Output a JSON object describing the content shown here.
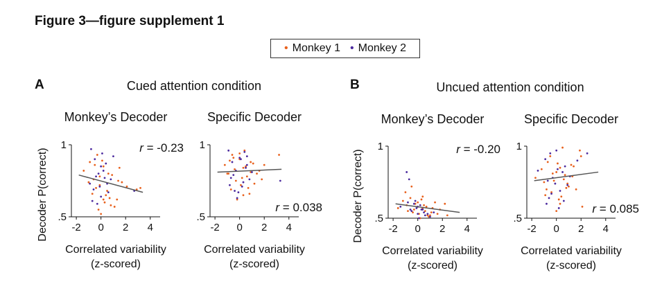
{
  "figure_title": "Figure 3—figure supplement 1",
  "legend": {
    "items": [
      {
        "label": "Monkey 1",
        "marker": "•",
        "color": "#e8601c"
      },
      {
        "label": "Monkey 2",
        "marker": "•",
        "color": "#4b2a9e"
      }
    ]
  },
  "panels": [
    {
      "letter": "A",
      "condition": "Cued attention condition"
    },
    {
      "letter": "B",
      "condition": "Uncued attention condition"
    }
  ],
  "colors": {
    "monkey1": "#e8601c",
    "monkey2": "#4b2a9e",
    "fit": "#555555",
    "axis": "#111111"
  },
  "chart_data": [
    {
      "type": "scatter",
      "panel": "A",
      "title": "Monkey’s Decoder",
      "xlabel": "Correlated variability",
      "xlabel2": "(z-scored)",
      "ylabel": "Decoder P(correct)",
      "xlim": [
        -2.4,
        4.8
      ],
      "ylim": [
        0.5,
        1.0
      ],
      "xticks": [
        -2,
        0,
        2,
        4
      ],
      "xtick_labels": [
        "-2",
        "0",
        "2",
        "4"
      ],
      "yticks": [
        0.5,
        1.0
      ],
      "ytick_labels": [
        ".5",
        "1"
      ],
      "annotation": "r = -0.23",
      "annotation_pos": "top-right",
      "fit": {
        "x": [
          -1.8,
          3.4
        ],
        "y": [
          0.79,
          0.67
        ]
      },
      "series": [
        {
          "name": "Monkey 1",
          "color": "#e8601c",
          "x": [
            -1.4,
            -0.9,
            -0.6,
            -0.3,
            -0.1,
            0.2,
            0.5,
            0.9,
            1.3,
            1.7,
            2.1,
            2.9,
            -0.7,
            -0.2,
            0.3,
            0.7,
            1.1,
            1.5,
            0.0,
            -0.4,
            0.1,
            0.6,
            -1.0,
            3.2,
            0.4,
            -0.5,
            0.8,
            1.4,
            -0.1,
            0.2
          ],
          "y": [
            0.82,
            0.88,
            0.76,
            0.93,
            0.72,
            0.85,
            0.68,
            0.79,
            0.62,
            0.74,
            0.71,
            0.69,
            0.66,
            0.55,
            0.6,
            0.63,
            0.57,
            0.84,
            0.52,
            0.7,
            0.89,
            0.8,
            0.74,
            0.7,
            0.65,
            0.86,
            0.58,
            0.75,
            0.78,
            0.62
          ]
        },
        {
          "name": "Monkey 2",
          "color": "#4b2a9e",
          "x": [
            -0.8,
            -0.5,
            -0.2,
            0.1,
            0.3,
            -0.6,
            0.0,
            0.4,
            -0.9,
            2.7,
            -0.3,
            0.2,
            -0.1,
            0.6,
            1.0,
            -0.7,
            0.5,
            -0.4,
            0.8,
            0.0
          ],
          "y": [
            0.97,
            0.9,
            0.8,
            0.94,
            0.77,
            0.69,
            0.64,
            0.87,
            0.73,
            0.68,
            0.59,
            0.82,
            0.71,
            0.67,
            0.92,
            0.61,
            0.73,
            0.78,
            0.76,
            0.85
          ]
        }
      ]
    },
    {
      "type": "scatter",
      "panel": "A",
      "title": "Specific Decoder",
      "xlabel": "Correlated variability",
      "xlabel2": "(z-scored)",
      "ylabel": "",
      "xlim": [
        -2.4,
        4.8
      ],
      "ylim": [
        0.5,
        1.0
      ],
      "xticks": [
        -2,
        0,
        2,
        4
      ],
      "xtick_labels": [
        "-2",
        "0",
        "2",
        "4"
      ],
      "yticks": [
        0.5,
        1.0
      ],
      "ytick_labels": [
        ".5",
        "1"
      ],
      "annotation": "r = 0.038",
      "annotation_pos": "bottom-right",
      "fit": {
        "x": [
          -1.8,
          3.4
        ],
        "y": [
          0.81,
          0.83
        ]
      },
      "series": [
        {
          "name": "Monkey 1",
          "color": "#e8601c",
          "x": [
            -1.2,
            -0.9,
            -0.6,
            -0.3,
            0.0,
            0.3,
            0.6,
            0.9,
            1.2,
            1.6,
            2.0,
            3.2,
            -0.7,
            -0.2,
            0.4,
            0.8,
            1.4,
            -0.5,
            0.1,
            0.5,
            -1.0,
            0.2,
            1.1,
            0.7,
            -0.4,
            0.0,
            1.8,
            -0.8,
            0.3,
            0.9
          ],
          "y": [
            0.86,
            0.8,
            0.93,
            0.75,
            0.9,
            0.84,
            0.78,
            0.88,
            0.73,
            0.82,
            0.86,
            0.93,
            0.69,
            0.62,
            0.96,
            0.66,
            0.8,
            0.91,
            0.72,
            0.85,
            0.8,
            0.77,
            0.87,
            0.7,
            0.83,
            0.94,
            0.76,
            0.89,
            0.65,
            0.81
          ]
        },
        {
          "name": "Monkey 2",
          "color": "#4b2a9e",
          "x": [
            -0.9,
            -0.6,
            -0.3,
            0.0,
            0.3,
            0.6,
            -0.8,
            -0.1,
            0.4,
            -0.5,
            0.2,
            0.8,
            3.3,
            -0.2,
            0.5,
            -0.7,
            0.1,
            1.0,
            -0.4,
            0.6
          ],
          "y": [
            0.96,
            0.88,
            0.82,
            0.91,
            0.74,
            0.86,
            0.72,
            0.67,
            0.95,
            0.79,
            0.71,
            0.76,
            0.75,
            0.63,
            0.84,
            0.77,
            0.9,
            0.81,
            0.68,
            0.92
          ]
        }
      ]
    },
    {
      "type": "scatter",
      "panel": "B",
      "title": "Monkey’s Decoder",
      "xlabel": "Correlated variability",
      "xlabel2": "(z-scored)",
      "ylabel": "Decoder P(correct)",
      "xlim": [
        -2.4,
        4.8
      ],
      "ylim": [
        0.5,
        1.0
      ],
      "xticks": [
        -2,
        0,
        2,
        4
      ],
      "xtick_labels": [
        "-2",
        "0",
        "2",
        "4"
      ],
      "yticks": [
        0.5,
        1.0
      ],
      "ytick_labels": [
        ".5",
        "1"
      ],
      "annotation": "r = -0.20",
      "annotation_pos": "top-right",
      "fit": {
        "x": [
          -1.8,
          3.4
        ],
        "y": [
          0.6,
          0.54
        ]
      },
      "series": [
        {
          "name": "Monkey 1",
          "color": "#e8601c",
          "x": [
            -1.6,
            -1.2,
            -0.8,
            -0.5,
            -0.2,
            0.1,
            0.4,
            0.7,
            1.0,
            1.4,
            1.8,
            2.2,
            -1.0,
            -0.4,
            0.0,
            0.3,
            0.6,
            0.9,
            1.2,
            1.6,
            -0.6,
            0.2,
            0.5,
            0.8,
            -0.3,
            0.0,
            1.1,
            2.4,
            -0.9,
            0.4
          ],
          "y": [
            0.57,
            0.62,
            0.55,
            0.72,
            0.6,
            0.53,
            0.65,
            0.58,
            0.52,
            0.61,
            0.56,
            0.6,
            0.68,
            0.54,
            0.58,
            0.63,
            0.55,
            0.51,
            0.57,
            0.53,
            0.64,
            0.5,
            0.59,
            0.52,
            0.56,
            0.61,
            0.54,
            0.52,
            0.59,
            0.57
          ]
        },
        {
          "name": "Monkey 2",
          "color": "#4b2a9e",
          "x": [
            -1.4,
            -0.9,
            -0.6,
            -0.3,
            0.0,
            0.3,
            0.6,
            -0.7,
            -0.1,
            0.5,
            1.0,
            -0.5,
            0.2,
            0.8,
            -0.2,
            0.1,
            0.4,
            -0.8,
            1.3,
            0.0
          ],
          "y": [
            0.58,
            0.82,
            0.56,
            0.6,
            0.53,
            0.56,
            0.52,
            0.77,
            0.57,
            0.54,
            0.51,
            0.55,
            0.59,
            0.53,
            0.62,
            0.5,
            0.56,
            0.61,
            0.54,
            0.58
          ]
        }
      ]
    },
    {
      "type": "scatter",
      "panel": "B",
      "title": "Specific Decoder",
      "xlabel": "Correlated variability",
      "xlabel2": "(z-scored)",
      "ylabel": "",
      "xlim": [
        -2.4,
        4.8
      ],
      "ylim": [
        0.5,
        1.0
      ],
      "xticks": [
        -2,
        0,
        2,
        4
      ],
      "xtick_labels": [
        "-2",
        "0",
        "2",
        "4"
      ],
      "yticks": [
        0.5,
        1.0
      ],
      "ytick_labels": [
        ".5",
        "1"
      ],
      "annotation": "r = 0.085",
      "annotation_pos": "bottom-right",
      "fit": {
        "x": [
          -1.8,
          3.4
        ],
        "y": [
          0.76,
          0.82
        ]
      },
      "series": [
        {
          "name": "Monkey 1",
          "color": "#e8601c",
          "x": [
            -1.7,
            -1.2,
            -0.8,
            -0.5,
            -0.2,
            0.1,
            0.4,
            0.7,
            1.0,
            1.4,
            1.9,
            2.1,
            -1.0,
            -0.4,
            0.0,
            0.3,
            0.6,
            1.2,
            1.6,
            -0.7,
            0.2,
            0.5,
            0.9,
            -0.3,
            0.0,
            1.3,
            -0.9,
            0.3,
            0.8,
            2.0
          ],
          "y": [
            0.78,
            0.84,
            0.7,
            0.93,
            0.76,
            0.88,
            0.65,
            0.8,
            0.72,
            0.86,
            0.97,
            0.58,
            0.75,
            0.68,
            0.82,
            0.6,
            0.77,
            0.87,
            0.7,
            0.89,
            0.63,
            0.99,
            0.74,
            0.81,
            0.55,
            0.79,
            0.66,
            0.85,
            0.71,
            0.93
          ]
        },
        {
          "name": "Monkey 2",
          "color": "#4b2a9e",
          "x": [
            -1.5,
            -0.9,
            -0.6,
            -0.3,
            0.0,
            0.3,
            0.7,
            -0.8,
            -0.1,
            0.5,
            1.1,
            -0.5,
            0.2,
            0.9,
            2.5,
            -0.4,
            0.1,
            0.6,
            -0.7,
            1.7
          ],
          "y": [
            0.83,
            0.91,
            0.64,
            0.78,
            0.97,
            0.69,
            0.86,
            0.6,
            0.74,
            0.82,
            0.79,
            0.95,
            0.57,
            0.73,
            0.95,
            0.67,
            0.84,
            0.62,
            0.76,
            0.9
          ]
        }
      ]
    }
  ]
}
